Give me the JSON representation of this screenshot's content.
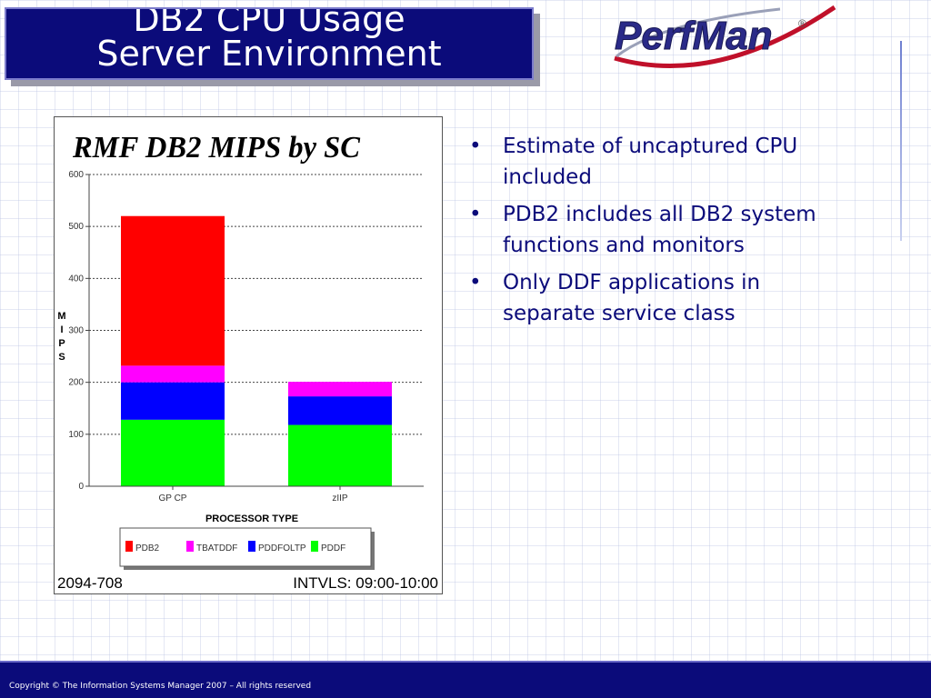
{
  "slide": {
    "title_line1": "DB2 CPU Usage",
    "title_line2": "Server Environment",
    "logo_text": "PerfMan",
    "logo_mark": "®",
    "bullets": [
      "Estimate of uncaptured CPU included",
      "PDB2 includes all DB2 system functions and monitors",
      "Only DDF applications in separate service class"
    ],
    "bullet_glyph": "•",
    "footer": "Copyright © The Information Systems Manager 2007 – All rights reserved"
  },
  "chart_data": {
    "type": "bar",
    "stacked": true,
    "title": "RMF DB2 MIPS by SC",
    "xlabel": "PROCESSOR TYPE",
    "ylabel": "MIPS",
    "ylim": [
      0,
      600
    ],
    "yticks": [
      0,
      100,
      200,
      300,
      400,
      500,
      600
    ],
    "grid": true,
    "categories": [
      "GP CP",
      "zIIP"
    ],
    "series": [
      {
        "name": "PDDF",
        "color": "#00ff00",
        "values": [
          128,
          118
        ]
      },
      {
        "name": "PDDFOLTP",
        "color": "#0000ff",
        "values": [
          72,
          55
        ]
      },
      {
        "name": "TBATDDF",
        "color": "#ff00ff",
        "values": [
          32,
          28
        ]
      },
      {
        "name": "PDB2",
        "color": "#ff0000",
        "values": [
          288,
          0
        ]
      }
    ],
    "legend_order": [
      "PDB2",
      "TBATDDF",
      "PDDFOLTP",
      "PDDF"
    ],
    "legend_position": "bottom",
    "footer_left": "2094-708",
    "footer_right": "INTVLS: 09:00-10:00"
  }
}
